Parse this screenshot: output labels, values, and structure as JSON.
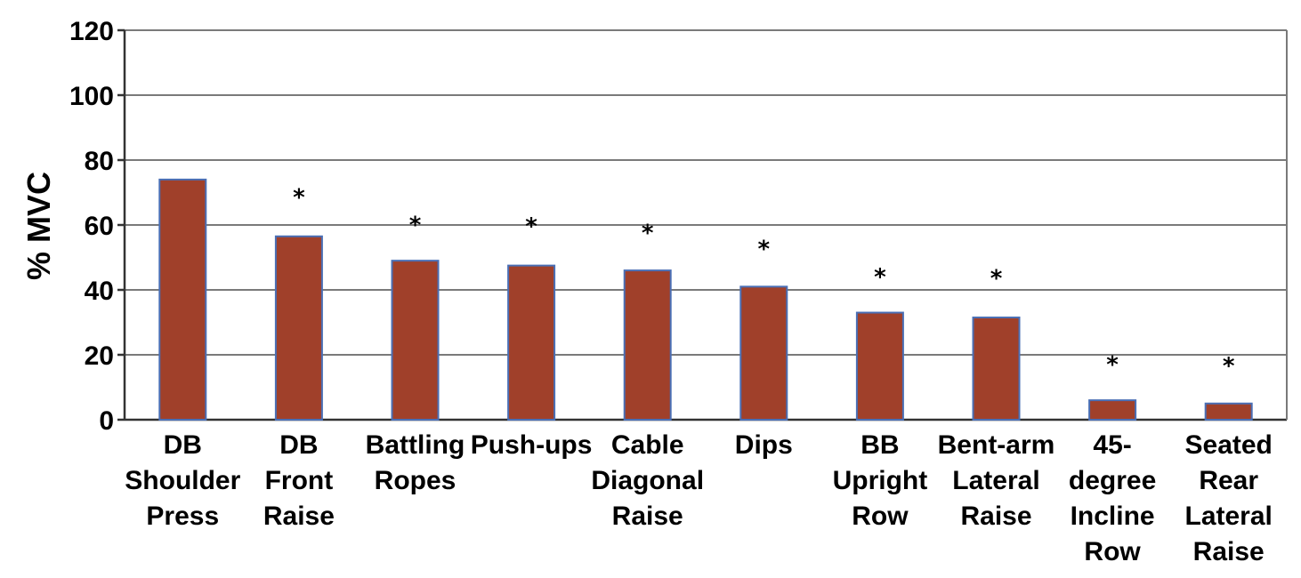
{
  "chart_data": {
    "type": "bar",
    "title": "",
    "xlabel": "",
    "ylabel": "% MVC",
    "ylim": [
      0,
      120
    ],
    "yticks": [
      0,
      20,
      40,
      60,
      80,
      100,
      120
    ],
    "grid": true,
    "legend": "none",
    "colors": {
      "bar_fill": "#a0402a",
      "bar_edge": "#4a6fb5",
      "grid": "#7a7a7a"
    },
    "categories": [
      [
        "DB",
        "Shoulder",
        "Press"
      ],
      [
        "DB",
        "Front",
        "Raise"
      ],
      [
        "Battling",
        "Ropes"
      ],
      [
        "Push-ups"
      ],
      [
        "Cable",
        "Diagonal",
        "Raise"
      ],
      [
        "Dips"
      ],
      [
        "BB",
        "Upright",
        "Row"
      ],
      [
        "Bent-arm",
        "Lateral",
        "Raise"
      ],
      [
        "45-",
        "degree",
        "Incline",
        "Row"
      ],
      [
        "Seated",
        "Rear",
        "Lateral",
        "Raise"
      ]
    ],
    "values": [
      74,
      56.5,
      49,
      47.5,
      46,
      41,
      33,
      31.5,
      6,
      5
    ],
    "significance_marker": "*",
    "significance_heights": [
      null,
      69.5,
      61,
      60.5,
      58.5,
      53.5,
      45,
      44.5,
      18,
      17.5
    ]
  }
}
